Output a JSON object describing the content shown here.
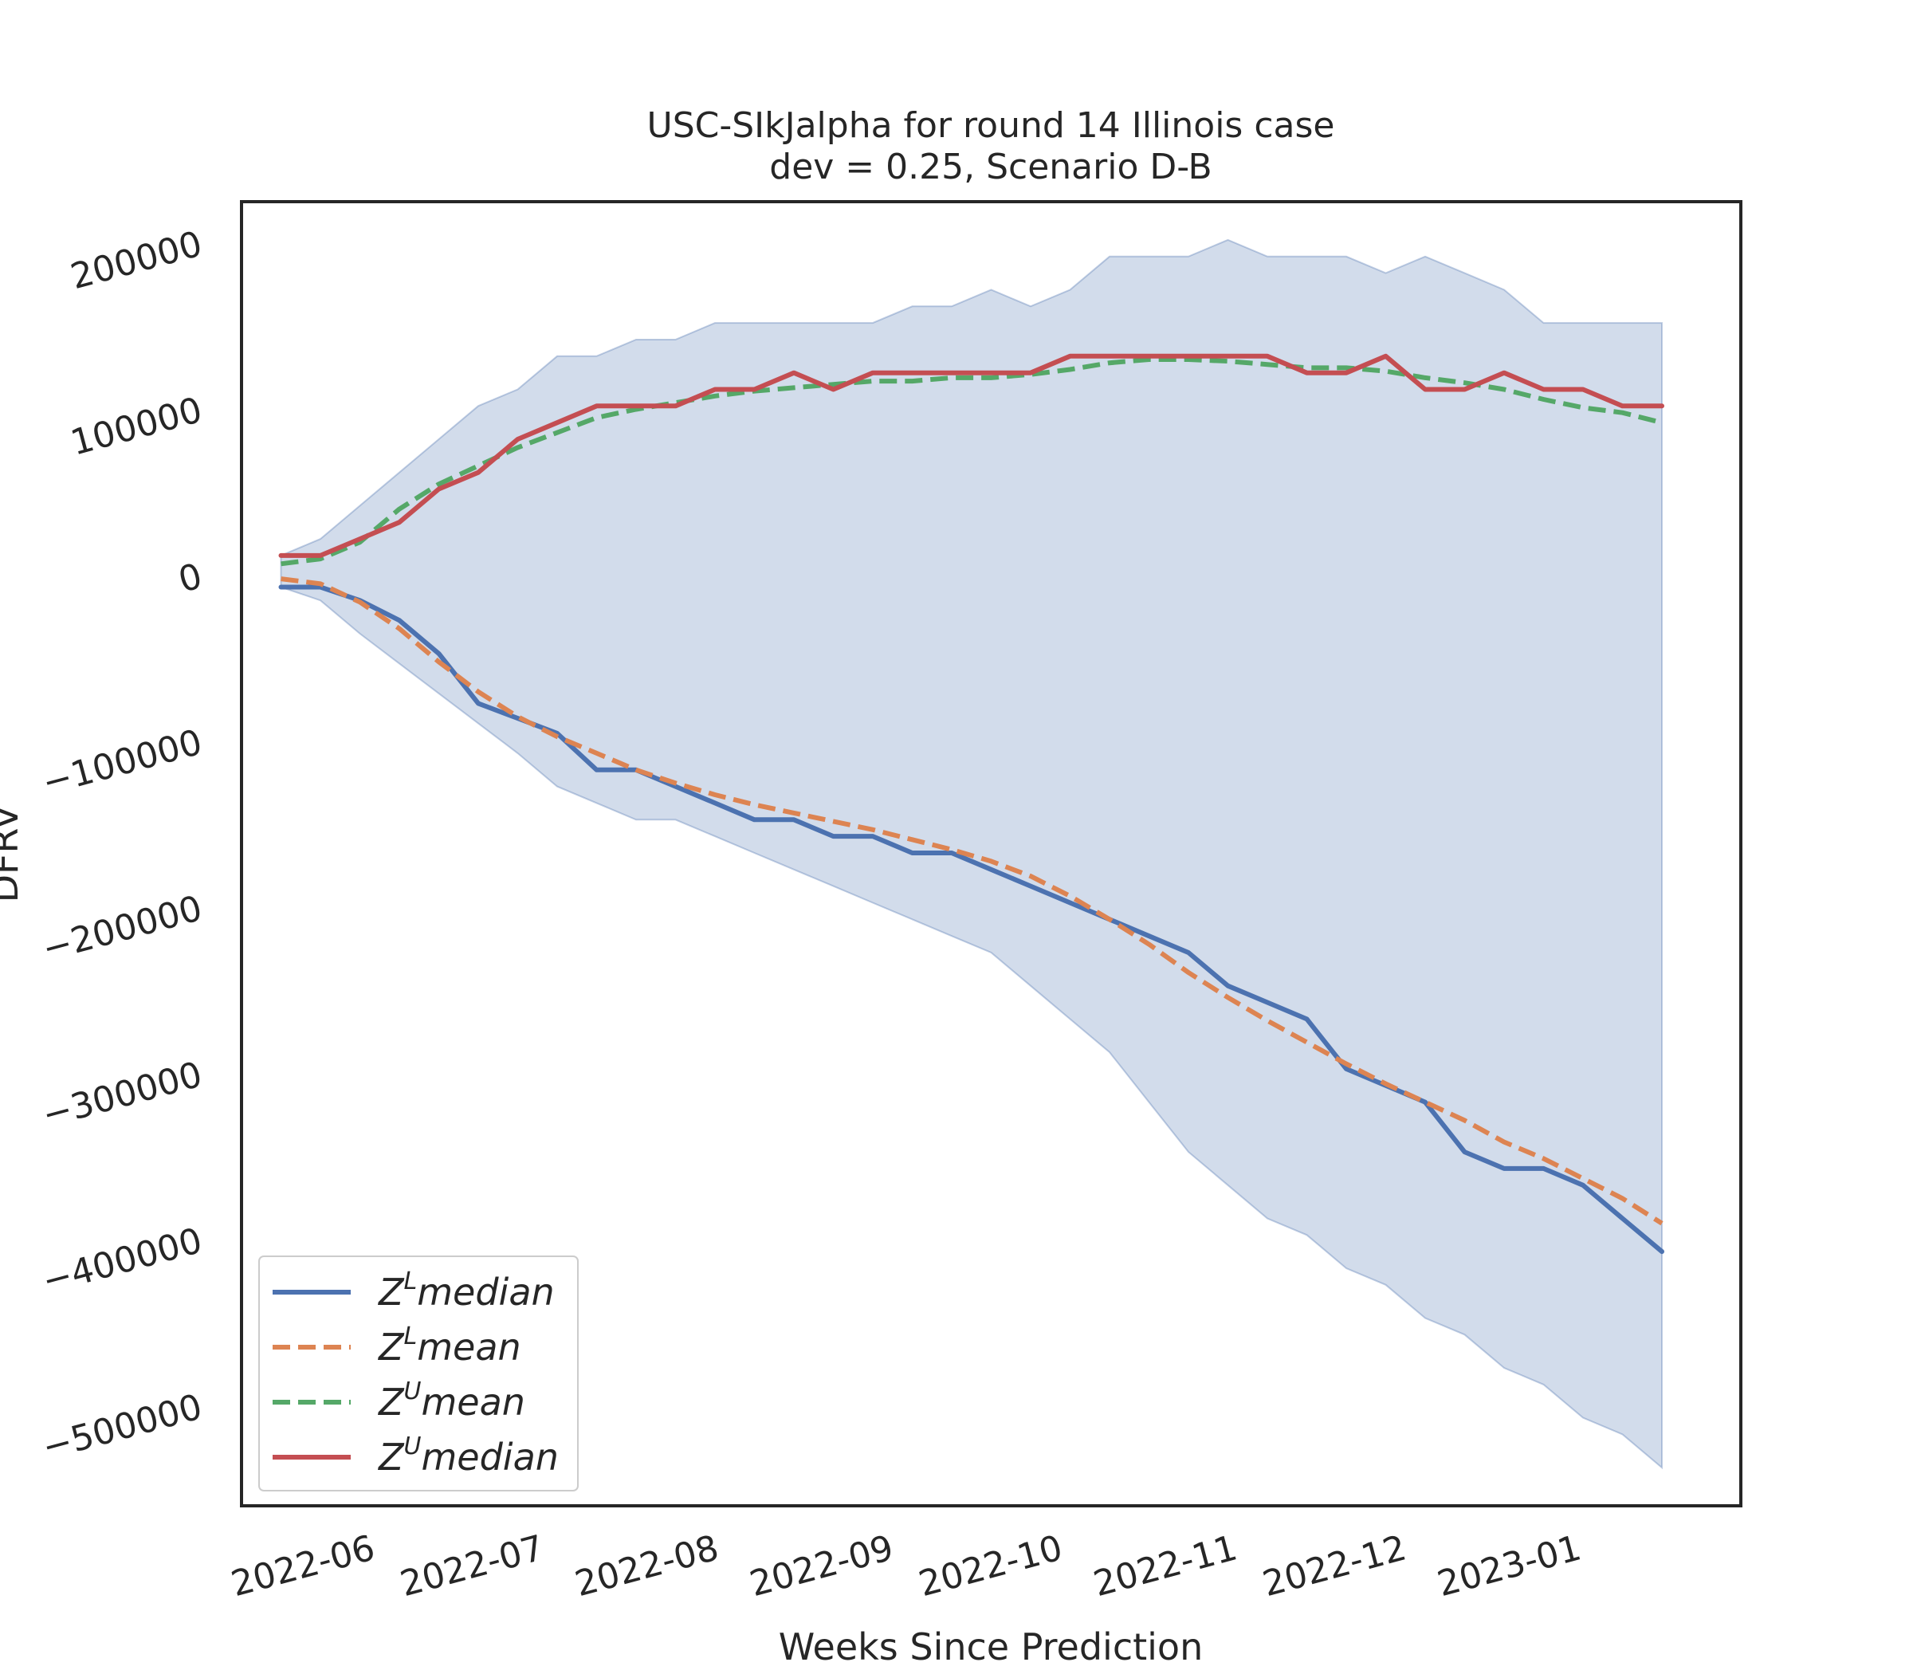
{
  "chart_data": {
    "type": "line",
    "title": "USC-SIkJalpha for round 14 Illinois case",
    "subtitle": "dev = 0.25, Scenario D-B",
    "xlabel": "Weeks Since Prediction",
    "ylabel": "DFRV",
    "x_tick_labels": [
      "2022-06",
      "2022-07",
      "2022-08",
      "2022-09",
      "2022-10",
      "2022-11",
      "2022-12",
      "2023-01"
    ],
    "y_ticks": [
      200000,
      100000,
      0,
      -100000,
      -200000,
      -300000,
      -400000,
      -500000
    ],
    "y_tick_labels": [
      "200000",
      "100000",
      "0",
      "−100000",
      "−200000",
      "−300000",
      "−400000",
      "−500000"
    ],
    "ylim": [
      -560000,
      225000
    ],
    "xlim": [
      "2022-05-08",
      "2023-01-29"
    ],
    "x": [
      "2022-05-15",
      "2022-05-22",
      "2022-05-29",
      "2022-06-05",
      "2022-06-12",
      "2022-06-19",
      "2022-06-26",
      "2022-07-03",
      "2022-07-10",
      "2022-07-17",
      "2022-07-24",
      "2022-07-31",
      "2022-08-07",
      "2022-08-14",
      "2022-08-21",
      "2022-08-28",
      "2022-09-04",
      "2022-09-11",
      "2022-09-18",
      "2022-09-25",
      "2022-10-02",
      "2022-10-09",
      "2022-10-16",
      "2022-10-23",
      "2022-10-30",
      "2022-11-06",
      "2022-11-13",
      "2022-11-20",
      "2022-11-27",
      "2022-12-04",
      "2022-12-11",
      "2022-12-18",
      "2022-12-25",
      "2023-01-01",
      "2023-01-08",
      "2023-01-15"
    ],
    "series": [
      {
        "name": "Z^L median",
        "style": "solid",
        "color": "#4c72b0",
        "values": [
          -7000,
          -7000,
          -15000,
          -27000,
          -47000,
          -77000,
          -86000,
          -95000,
          -117000,
          -117000,
          -127000,
          -137000,
          -147000,
          -147000,
          -157000,
          -157000,
          -167000,
          -167000,
          -177000,
          -187000,
          -197000,
          -207000,
          -217000,
          -227000,
          -247000,
          -257000,
          -267000,
          -297000,
          -307000,
          -317000,
          -347000,
          -357000,
          -357000,
          -367000,
          -387000,
          -407000
        ]
      },
      {
        "name": "Z^L mean",
        "style": "dashed",
        "color": "#dd8452",
        "values": [
          -2000,
          -5000,
          -16000,
          -32000,
          -52000,
          -70000,
          -85000,
          -97000,
          -107000,
          -117000,
          -125000,
          -132000,
          -138000,
          -143000,
          -148000,
          -153000,
          -159000,
          -165000,
          -172000,
          -181000,
          -193000,
          -207000,
          -222000,
          -239000,
          -254000,
          -268000,
          -281000,
          -294000,
          -306000,
          -317000,
          -328000,
          -341000,
          -351000,
          -363000,
          -375000,
          -390000
        ]
      },
      {
        "name": "Z^U mean",
        "style": "dashed",
        "color": "#55a868",
        "values": [
          7000,
          10000,
          20000,
          40000,
          55000,
          66000,
          77000,
          86000,
          95000,
          100000,
          104000,
          108000,
          111000,
          113000,
          115000,
          117000,
          117000,
          119000,
          119000,
          121000,
          124000,
          128000,
          130000,
          130000,
          129000,
          127000,
          125000,
          125000,
          123000,
          119000,
          116000,
          112000,
          106000,
          101000,
          98000,
          92000
        ]
      },
      {
        "name": "Z^U median",
        "style": "solid",
        "color": "#c44e52",
        "values": [
          12000,
          12000,
          22000,
          32000,
          52000,
          62000,
          82000,
          92000,
          102000,
          102000,
          102000,
          112000,
          112000,
          122000,
          112000,
          122000,
          122000,
          122000,
          122000,
          122000,
          132000,
          132000,
          132000,
          132000,
          132000,
          132000,
          122000,
          122000,
          132000,
          112000,
          112000,
          122000,
          112000,
          112000,
          102000,
          102000
        ]
      }
    ],
    "band": {
      "color": "#4c72b0",
      "upper": [
        12000,
        22000,
        42000,
        62000,
        82000,
        102000,
        112000,
        132000,
        132000,
        142000,
        142000,
        152000,
        152000,
        152000,
        152000,
        152000,
        162000,
        162000,
        172000,
        162000,
        172000,
        192000,
        192000,
        192000,
        202000,
        192000,
        192000,
        192000,
        182000,
        192000,
        182000,
        172000,
        152000,
        152000,
        152000,
        152000
      ],
      "lower": [
        -7000,
        -15000,
        -35000,
        -53000,
        -71000,
        -89000,
        -107000,
        -127000,
        -137000,
        -147000,
        -147000,
        -157000,
        -167000,
        -177000,
        -187000,
        -197000,
        -207000,
        -217000,
        -227000,
        -247000,
        -267000,
        -287000,
        -317000,
        -347000,
        -367000,
        -387000,
        -397000,
        -417000,
        -427000,
        -447000,
        -457000,
        -477000,
        -487000,
        -507000,
        -517000,
        -537000
      ]
    },
    "legend": {
      "placement": "lower-left",
      "entries": [
        {
          "base": "Z",
          "sup": "L",
          "text": "median"
        },
        {
          "base": "Z",
          "sup": "L",
          "text": "mean"
        },
        {
          "base": "Z",
          "sup": "U",
          "text": "mean"
        },
        {
          "base": "Z",
          "sup": "U",
          "text": "median"
        }
      ]
    },
    "grid": false
  }
}
